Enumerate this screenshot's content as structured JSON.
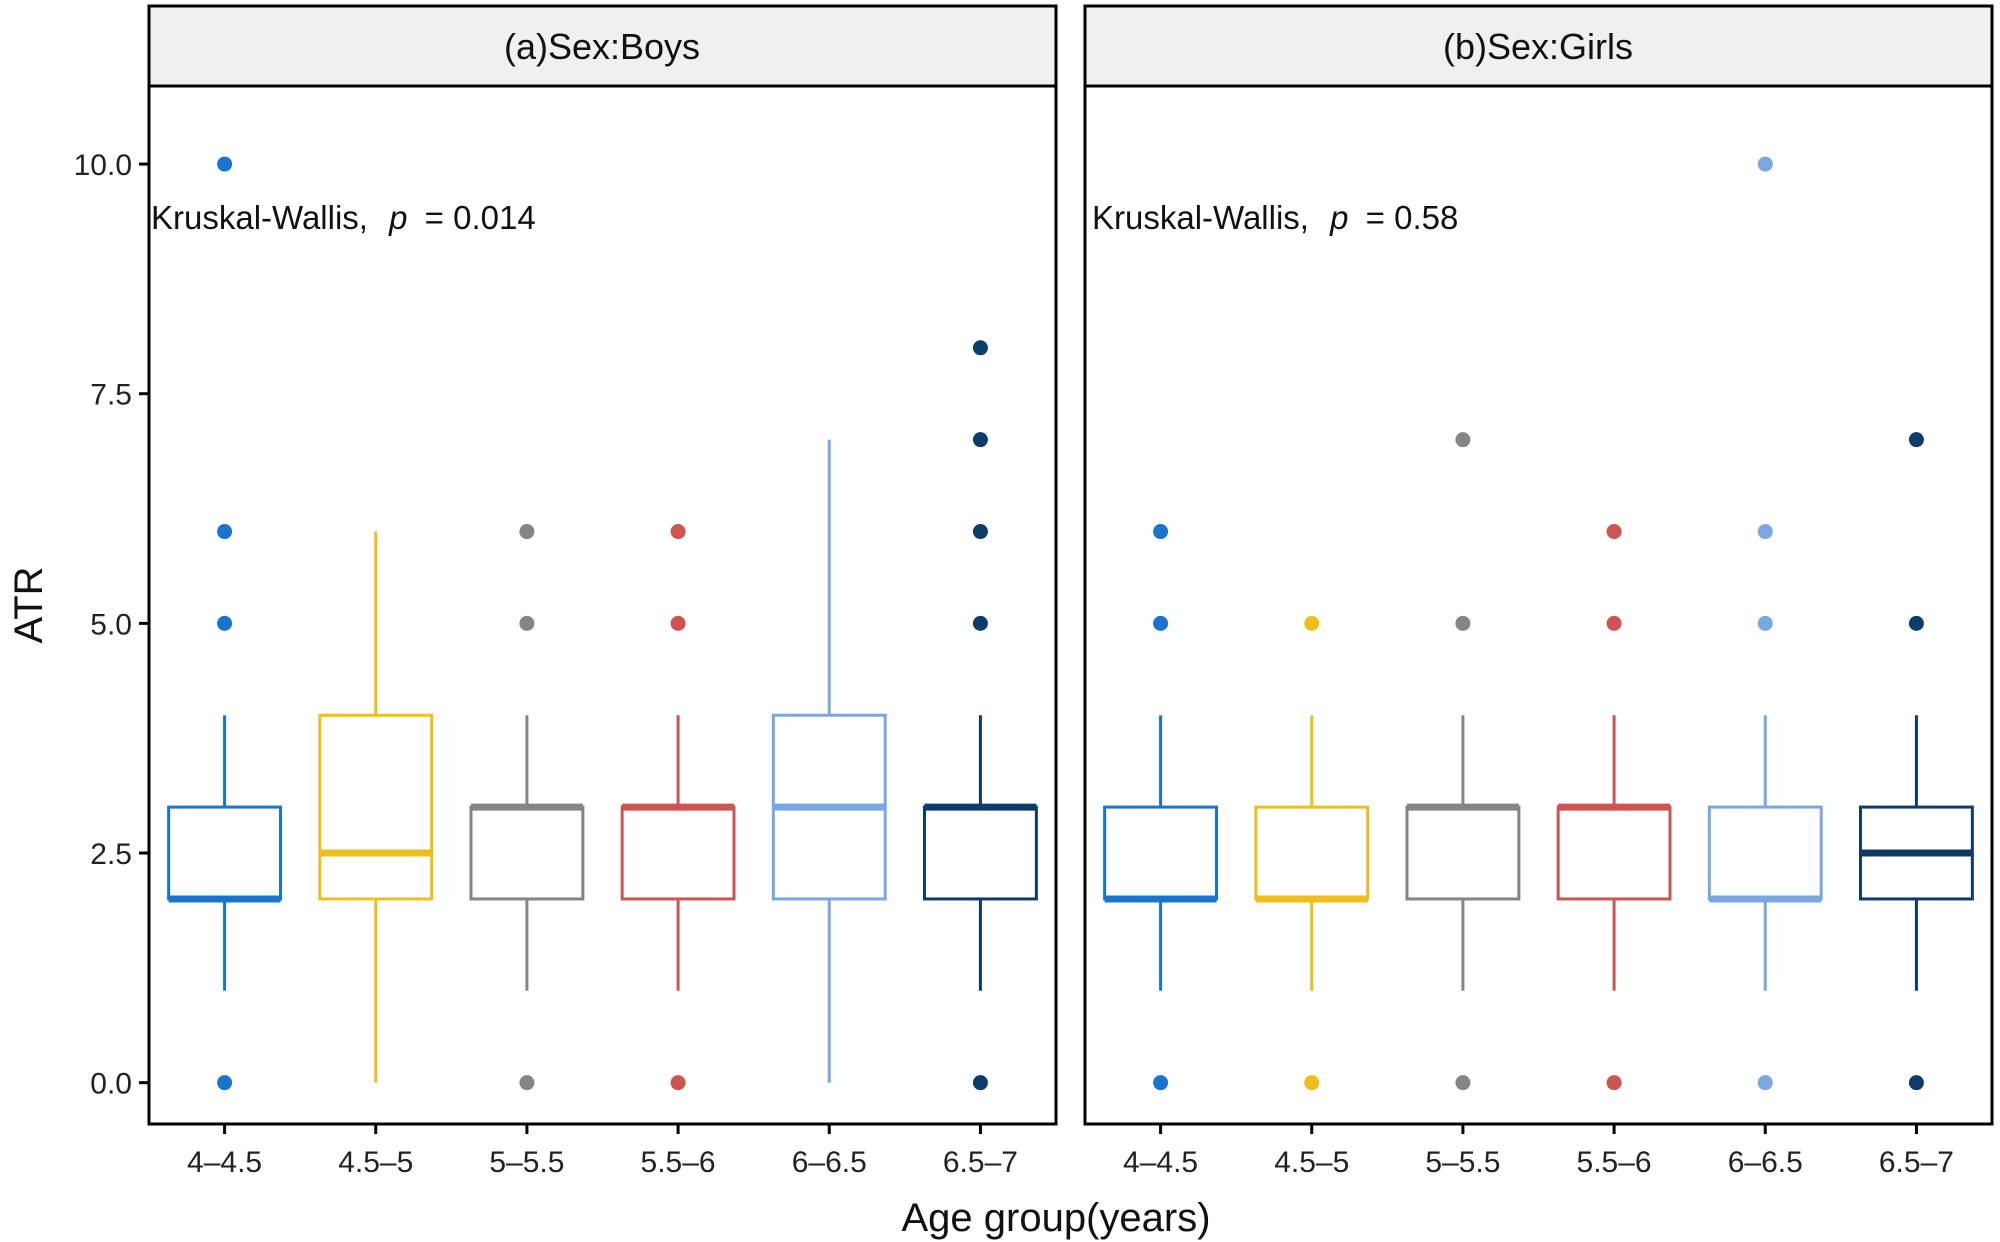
{
  "chart_data": {
    "type": "boxplot",
    "xlabel": "Age group(years)",
    "ylabel": "ATR",
    "ylim": [
      -0.45,
      10.85
    ],
    "yticks": [
      "0.0",
      "2.5",
      "5.0",
      "7.5",
      "10.0"
    ],
    "ytick_values": [
      0,
      2.5,
      5,
      7.5,
      10
    ],
    "categories": [
      "4–4.5",
      "4.5–5",
      "5–5.5",
      "5.5–6",
      "6–6.5",
      "6.5–7"
    ],
    "colors": [
      "#1874CD",
      "#EEBE1D",
      "#858585",
      "#CD5450",
      "#79A7E2",
      "#0E3C6A"
    ],
    "grid": false,
    "panels": [
      {
        "strip": "(a)Sex:Boys",
        "test": "Kruskal-Wallis,",
        "p_label": "p",
        "p_value": "= 0.014",
        "boxes": [
          {
            "lower_whisker": 1,
            "q1": 2,
            "median": 2,
            "q3": 3,
            "upper_whisker": 4,
            "outliers": [
              0,
              5,
              6,
              10
            ]
          },
          {
            "lower_whisker": 0,
            "q1": 2,
            "median": 2.5,
            "q3": 4,
            "upper_whisker": 6,
            "outliers": []
          },
          {
            "lower_whisker": 1,
            "q1": 2,
            "median": 3,
            "q3": 3,
            "upper_whisker": 4,
            "outliers": [
              0,
              5,
              6
            ]
          },
          {
            "lower_whisker": 1,
            "q1": 2,
            "median": 3,
            "q3": 3,
            "upper_whisker": 4,
            "outliers": [
              0,
              5,
              6
            ]
          },
          {
            "lower_whisker": 0,
            "q1": 2,
            "median": 3,
            "q3": 4,
            "upper_whisker": 7,
            "outliers": []
          },
          {
            "lower_whisker": 1,
            "q1": 2,
            "median": 3,
            "q3": 3,
            "upper_whisker": 4,
            "outliers": [
              0,
              5,
              6,
              7,
              8
            ]
          }
        ]
      },
      {
        "strip": "(b)Sex:Girls",
        "test": "Kruskal-Wallis,",
        "p_label": "p",
        "p_value": "= 0.58",
        "boxes": [
          {
            "lower_whisker": 1,
            "q1": 2,
            "median": 2,
            "q3": 3,
            "upper_whisker": 4,
            "outliers": [
              0,
              5,
              6
            ]
          },
          {
            "lower_whisker": 1,
            "q1": 2,
            "median": 2,
            "q3": 3,
            "upper_whisker": 4,
            "outliers": [
              0,
              5
            ]
          },
          {
            "lower_whisker": 1,
            "q1": 2,
            "median": 3,
            "q3": 3,
            "upper_whisker": 4,
            "outliers": [
              0,
              5,
              7
            ]
          },
          {
            "lower_whisker": 1,
            "q1": 2,
            "median": 3,
            "q3": 3,
            "upper_whisker": 4,
            "outliers": [
              0,
              5,
              6
            ]
          },
          {
            "lower_whisker": 1,
            "q1": 2,
            "median": 2,
            "q3": 3,
            "upper_whisker": 4,
            "outliers": [
              0,
              5,
              6,
              10
            ]
          },
          {
            "lower_whisker": 1,
            "q1": 2,
            "median": 2.5,
            "q3": 3,
            "upper_whisker": 4,
            "outliers": [
              0,
              5,
              7
            ]
          }
        ]
      }
    ]
  }
}
